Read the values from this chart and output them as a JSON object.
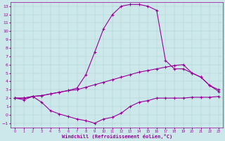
{
  "x": [
    0,
    1,
    2,
    3,
    4,
    5,
    6,
    7,
    8,
    9,
    10,
    11,
    12,
    13,
    14,
    15,
    16,
    17,
    18,
    19,
    20,
    21,
    22,
    23
  ],
  "curve_top": [
    2.0,
    2.0,
    2.2,
    2.3,
    2.5,
    2.7,
    2.9,
    3.2,
    4.8,
    7.5,
    10.3,
    12.0,
    13.0,
    13.2,
    13.2,
    13.0,
    12.5,
    6.5,
    5.5,
    5.5,
    5.0,
    4.5,
    3.5,
    3.0
  ],
  "curve_mid": [
    2.0,
    2.0,
    2.2,
    2.3,
    2.5,
    2.7,
    2.9,
    3.0,
    3.3,
    3.6,
    3.9,
    4.2,
    4.5,
    4.8,
    5.1,
    5.3,
    5.5,
    5.7,
    5.9,
    6.0,
    5.0,
    4.5,
    3.5,
    2.8
  ],
  "curve_bot": [
    2.0,
    1.8,
    2.2,
    1.5,
    0.5,
    0.1,
    -0.2,
    -0.5,
    -0.7,
    -1.0,
    -0.5,
    -0.3,
    0.2,
    1.0,
    1.5,
    1.7,
    2.0,
    2.0,
    2.0,
    2.0,
    2.1,
    2.1,
    2.1,
    2.2
  ],
  "line_color": "#990099",
  "bg_color": "#cce8eb",
  "grid_color": "#aacccc",
  "xlabel": "Windchill (Refroidissement éolien,°C)",
  "xlim": [
    -0.5,
    23.5
  ],
  "ylim": [
    -1.5,
    13.5
  ],
  "yticks": [
    -1,
    0,
    1,
    2,
    3,
    4,
    5,
    6,
    7,
    8,
    9,
    10,
    11,
    12,
    13
  ],
  "xticks": [
    0,
    1,
    2,
    3,
    4,
    5,
    6,
    7,
    8,
    9,
    10,
    11,
    12,
    13,
    14,
    15,
    16,
    17,
    18,
    19,
    20,
    21,
    22,
    23
  ]
}
